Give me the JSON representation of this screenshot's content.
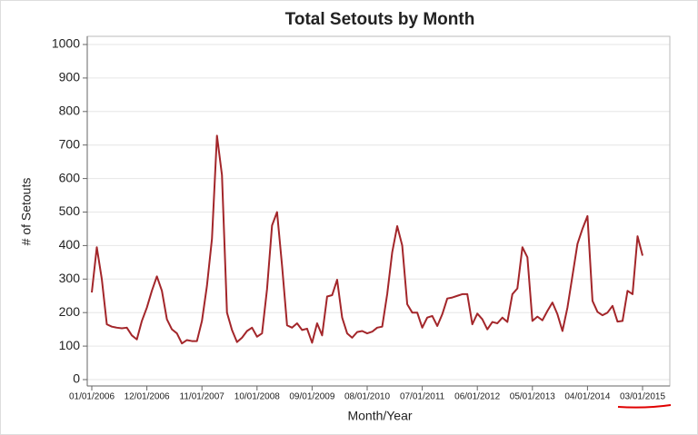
{
  "chart_data": {
    "type": "line",
    "title": "Total Setouts by Month",
    "x_label": "Month/Year",
    "y_label": "# of Setouts",
    "categories": [
      "01/01/2006",
      null,
      null,
      null,
      null,
      null,
      null,
      null,
      null,
      null,
      null,
      "12/01/2006",
      null,
      null,
      null,
      null,
      null,
      null,
      null,
      null,
      null,
      null,
      "11/01/2007",
      null,
      null,
      null,
      null,
      null,
      null,
      null,
      null,
      null,
      null,
      "10/01/2008",
      null,
      null,
      null,
      null,
      null,
      null,
      null,
      null,
      null,
      null,
      "09/01/2009",
      null,
      null,
      null,
      null,
      null,
      null,
      null,
      null,
      null,
      null,
      "08/01/2010",
      null,
      null,
      null,
      null,
      null,
      null,
      null,
      null,
      null,
      null,
      "07/01/2011",
      null,
      null,
      null,
      null,
      null,
      null,
      null,
      null,
      null,
      null,
      "06/01/2012",
      null,
      null,
      null,
      null,
      null,
      null,
      null,
      null,
      null,
      null,
      "05/01/2013",
      null,
      null,
      null,
      null,
      null,
      null,
      null,
      null,
      null,
      null,
      "04/01/2014",
      null,
      null,
      null,
      null,
      null,
      null,
      null,
      null,
      null,
      null,
      "03/01/2015"
    ],
    "series": [
      {
        "name": "Setouts",
        "color": "#a3262a",
        "values": [
          260,
          395,
          300,
          165,
          158,
          155,
          153,
          155,
          132,
          120,
          175,
          215,
          265,
          308,
          265,
          180,
          150,
          138,
          108,
          118,
          115,
          115,
          175,
          280,
          420,
          728,
          610,
          200,
          148,
          112,
          125,
          145,
          155,
          128,
          138,
          270,
          460,
          500,
          340,
          162,
          155,
          168,
          148,
          152,
          110,
          168,
          132,
          248,
          252,
          298,
          185,
          138,
          125,
          142,
          145,
          138,
          143,
          155,
          158,
          255,
          380,
          458,
          400,
          225,
          200,
          200,
          155,
          185,
          190,
          160,
          195,
          242,
          245,
          250,
          255,
          255,
          165,
          197,
          180,
          150,
          172,
          168,
          185,
          172,
          255,
          272,
          395,
          365,
          175,
          188,
          177,
          205,
          230,
          195,
          145,
          215,
          310,
          405,
          450,
          488,
          235,
          202,
          192,
          200,
          220,
          173,
          175,
          265,
          255,
          428,
          370
        ]
      }
    ],
    "ylim": [
      0,
      1000
    ],
    "yticks": [
      0,
      100,
      200,
      300,
      400,
      500,
      600,
      700,
      800,
      900,
      1000
    ],
    "grid": true
  }
}
